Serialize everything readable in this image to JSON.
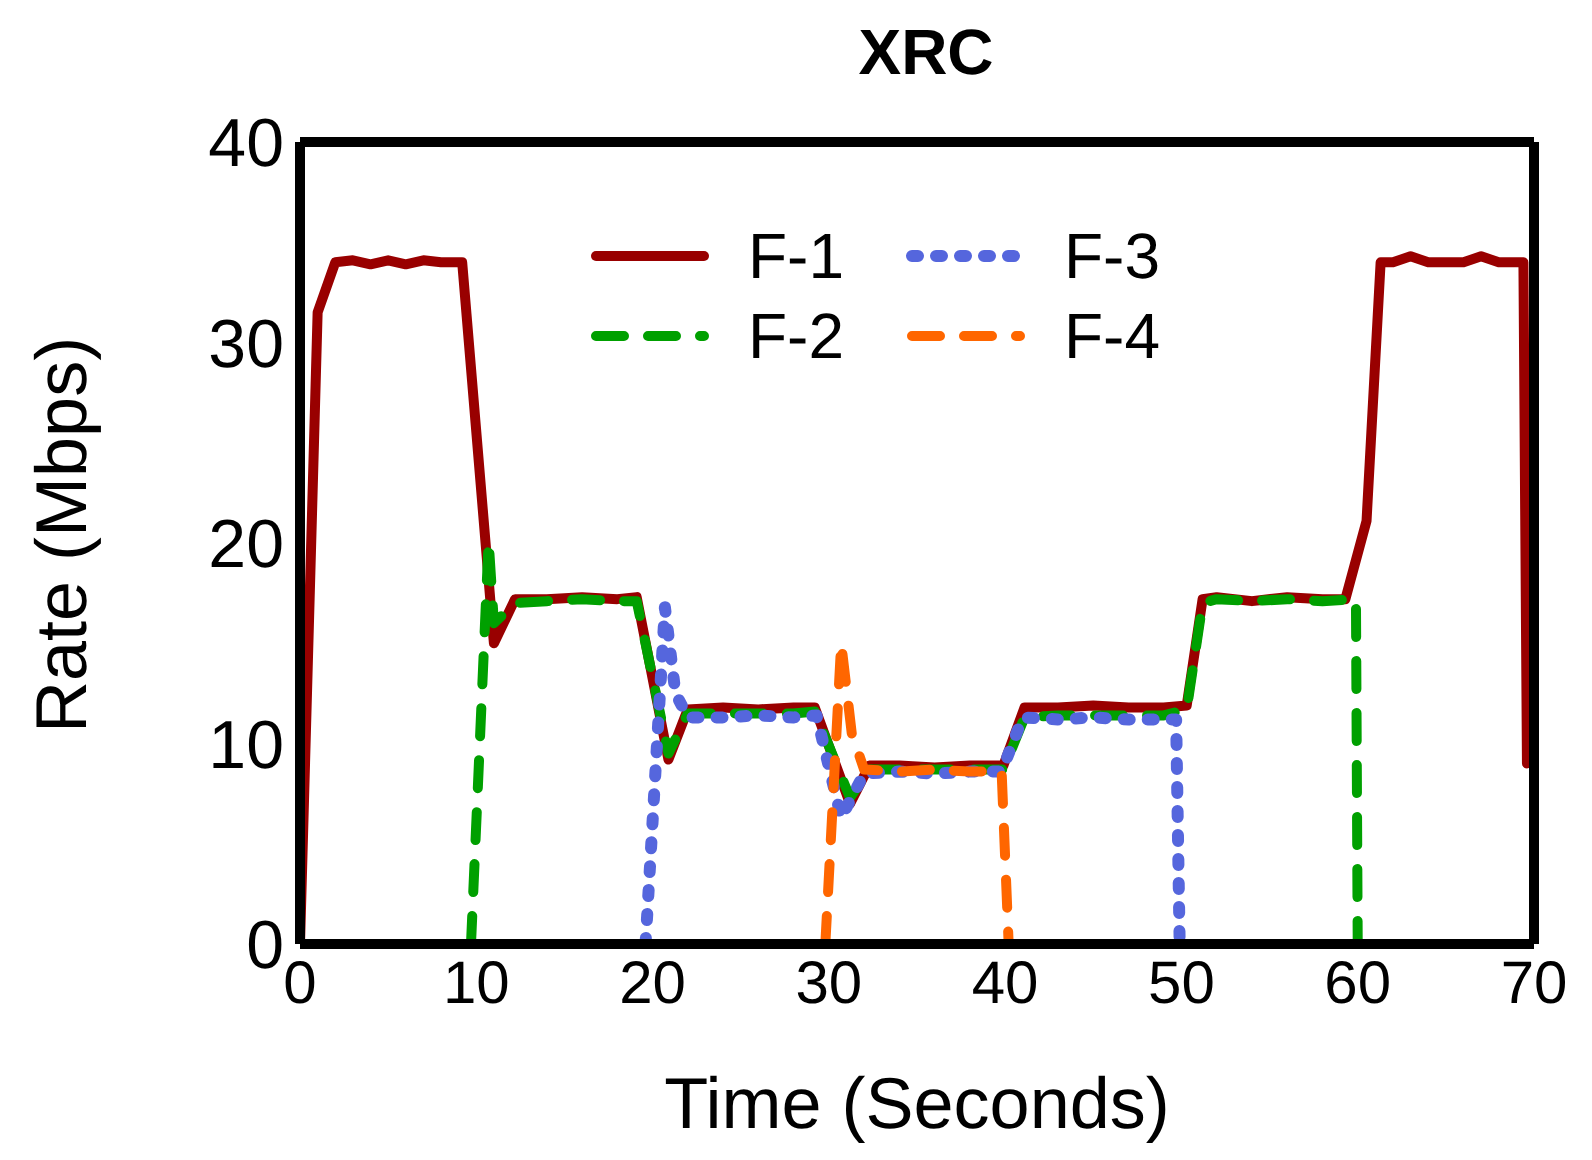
{
  "chart_data": {
    "type": "line",
    "title": "XRC",
    "xlabel": "Time (Seconds)",
    "ylabel": "Rate (Mbps)",
    "xlim": [
      0,
      70
    ],
    "xticks": [
      0,
      10,
      20,
      30,
      40,
      50,
      60,
      70
    ],
    "ylim": [
      0,
      40
    ],
    "yticks": [
      0,
      10,
      20,
      30,
      40
    ],
    "legend": "top",
    "marker": "none",
    "series": [
      {
        "name": "F-1",
        "color": "#990000",
        "line_style": "solid",
        "x": [
          0,
          1,
          2,
          3,
          4,
          5,
          6,
          7,
          8,
          9.2,
          11,
          12.2,
          14,
          16,
          18,
          19.1,
          20.9,
          22,
          24,
          26,
          28,
          29.2,
          31.2,
          32.3,
          34,
          36,
          38,
          39.9,
          41.1,
          43,
          45,
          47,
          49,
          50.3,
          51.2,
          52,
          54,
          56,
          58,
          59.3,
          60.5,
          61.3,
          62,
          63,
          64,
          66,
          67,
          68,
          69.4,
          69.6
        ],
        "values": [
          0,
          31.5,
          34,
          34.1,
          33.9,
          34.1,
          33.9,
          34.1,
          34,
          34,
          15,
          17.2,
          17.2,
          17.3,
          17.2,
          17.3,
          9.2,
          11.7,
          11.8,
          11.7,
          11.8,
          11.8,
          7,
          8.9,
          8.9,
          8.8,
          8.9,
          8.9,
          11.8,
          11.8,
          11.9,
          11.8,
          11.8,
          11.9,
          17.2,
          17.3,
          17.1,
          17.3,
          17.2,
          17.2,
          21.1,
          34,
          34,
          34.3,
          34,
          34,
          34.3,
          34,
          34,
          9
        ]
      },
      {
        "name": "F-2",
        "color": "#00a000",
        "line_style": "dashed",
        "x": [
          9.7,
          10.7,
          11,
          12.2,
          14,
          16,
          18,
          19.1,
          20.9,
          22,
          24,
          26,
          28,
          29.2,
          31.2,
          32.3,
          34,
          36,
          38,
          39.9,
          41.1,
          43,
          45,
          47,
          49,
          50.3,
          51.2,
          52,
          54,
          56,
          58,
          59.9,
          60
        ],
        "values": [
          0,
          20.1,
          16,
          17,
          17.1,
          17.2,
          17.1,
          17.1,
          9.5,
          11.5,
          11.5,
          11.5,
          11.5,
          11.6,
          7.3,
          8.7,
          8.7,
          8.7,
          8.7,
          8.7,
          11.3,
          11.4,
          11.4,
          11.4,
          11.4,
          11.7,
          17,
          17.2,
          17.1,
          17.2,
          17.1,
          17.2,
          0
        ]
      },
      {
        "name": "F-3",
        "color": "#5566dd",
        "line_style": "dotted",
        "x": [
          19.6,
          20.7,
          21.3,
          22,
          24,
          26,
          28,
          29.3,
          30.7,
          32,
          34,
          36,
          38,
          39.8,
          41,
          43,
          45,
          47,
          49.7,
          49.9
        ],
        "values": [
          0,
          16.8,
          12.5,
          11.3,
          11.3,
          11.4,
          11.3,
          11.4,
          6.3,
          8.5,
          8.6,
          8.5,
          8.6,
          8.6,
          11.3,
          11.2,
          11.3,
          11.2,
          11.2,
          0
        ]
      },
      {
        "name": "F-4",
        "color": "#ff6600",
        "line_style": "dashed",
        "x": [
          29.8,
          30.7,
          31.3,
          32,
          34,
          36,
          38,
          39.8,
          40.2
        ],
        "values": [
          0,
          15,
          10.5,
          8.7,
          8.6,
          8.7,
          8.6,
          8.6,
          0
        ]
      }
    ]
  }
}
